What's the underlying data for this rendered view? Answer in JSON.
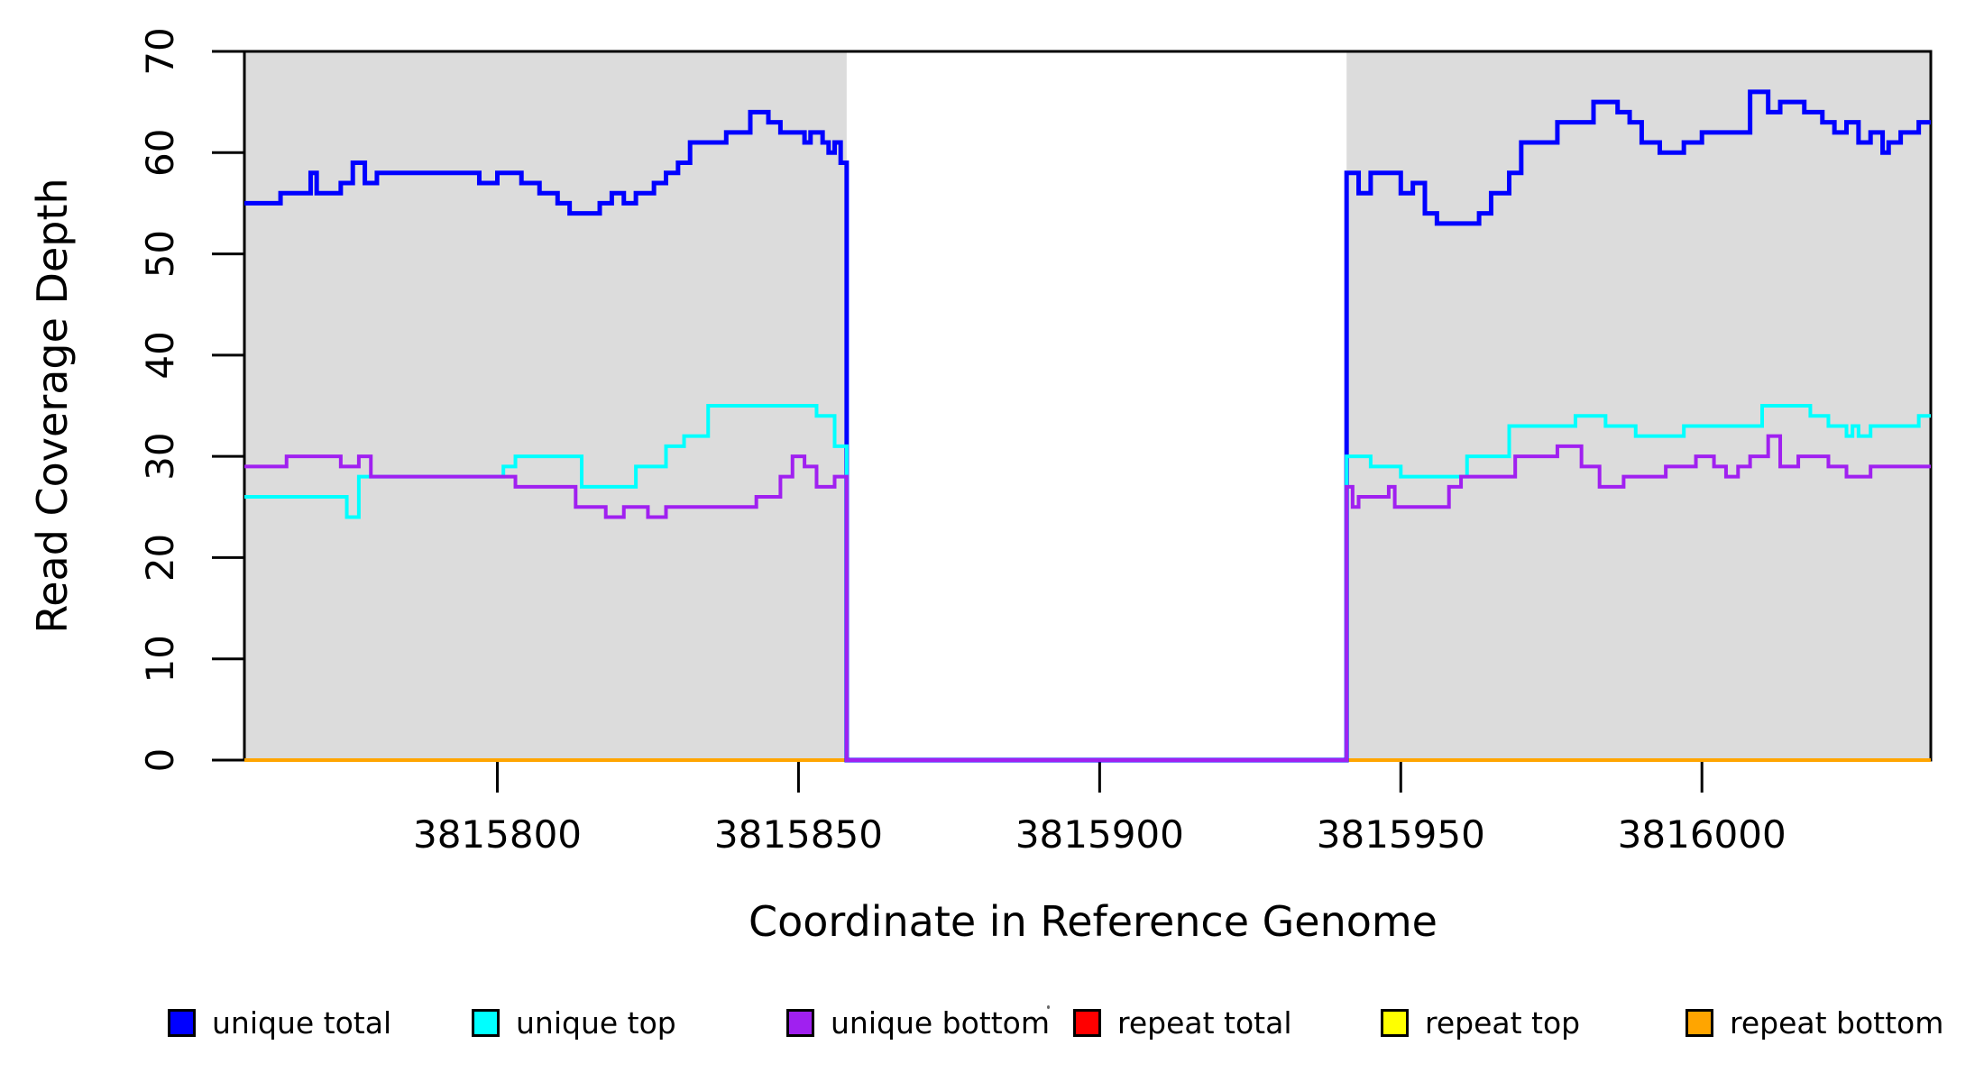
{
  "figure": {
    "background": "#ffffff",
    "panel_border_color": "#000000"
  },
  "chart_data": {
    "type": "line",
    "subtype": "step-post",
    "title": "",
    "xlabel": "Coordinate in Reference Genome",
    "ylabel": "Read Coverage Depth",
    "xlim": [
      3815758,
      3816038
    ],
    "ylim": [
      0,
      70
    ],
    "x_ticks": [
      3815800,
      3815850,
      3815900,
      3815950,
      3816000
    ],
    "y_ticks": [
      0,
      10,
      20,
      30,
      40,
      50,
      60,
      70
    ],
    "grid": false,
    "panel_background": "#DCDCDC",
    "covered_regions": [
      [
        3815758,
        3815858
      ],
      [
        3815941,
        3816038
      ]
    ],
    "coverage_gap": {
      "from": 3815858,
      "to": 3815941,
      "background": "#FFFFFF",
      "all_unique_series_value": 0
    },
    "legend_position": "bottom",
    "series": [
      {
        "name": "repeat total",
        "color": "#FF0000",
        "width": 4,
        "steps": [
          [
            3815758,
            0
          ]
        ]
      },
      {
        "name": "repeat top",
        "color": "#FFFF00",
        "width": 4,
        "steps": [
          [
            3815758,
            0
          ]
        ]
      },
      {
        "name": "repeat bottom",
        "color": "#FFA500",
        "width": 4,
        "steps": [
          [
            3815758,
            0
          ]
        ]
      },
      {
        "name": "unique total",
        "color": "#0000FF",
        "width": 5,
        "steps": [
          [
            3815758,
            55
          ],
          [
            3815764,
            56
          ],
          [
            3815769,
            58
          ],
          [
            3815770,
            56
          ],
          [
            3815774,
            57
          ],
          [
            3815776,
            59
          ],
          [
            3815778,
            57
          ],
          [
            3815780,
            58
          ],
          [
            3815797,
            57
          ],
          [
            3815800,
            58
          ],
          [
            3815804,
            57
          ],
          [
            3815807,
            56
          ],
          [
            3815810,
            55
          ],
          [
            3815812,
            54
          ],
          [
            3815817,
            55
          ],
          [
            3815819,
            56
          ],
          [
            3815821,
            55
          ],
          [
            3815823,
            56
          ],
          [
            3815826,
            57
          ],
          [
            3815828,
            58
          ],
          [
            3815830,
            59
          ],
          [
            3815832,
            61
          ],
          [
            3815838,
            62
          ],
          [
            3815842,
            64
          ],
          [
            3815845,
            63
          ],
          [
            3815847,
            62
          ],
          [
            3815851,
            61
          ],
          [
            3815852,
            62
          ],
          [
            3815854,
            61
          ],
          [
            3815855,
            60
          ],
          [
            3815856,
            61
          ],
          [
            3815857,
            59
          ],
          [
            3815858,
            0
          ],
          [
            3815941,
            58
          ],
          [
            3815943,
            56
          ],
          [
            3815945,
            58
          ],
          [
            3815950,
            56
          ],
          [
            3815952,
            57
          ],
          [
            3815954,
            54
          ],
          [
            3815956,
            53
          ],
          [
            3815963,
            54
          ],
          [
            3815965,
            56
          ],
          [
            3815968,
            58
          ],
          [
            3815970,
            61
          ],
          [
            3815976,
            63
          ],
          [
            3815982,
            65
          ],
          [
            3815986,
            64
          ],
          [
            3815988,
            63
          ],
          [
            3815990,
            61
          ],
          [
            3815993,
            60
          ],
          [
            3815997,
            61
          ],
          [
            3816000,
            62
          ],
          [
            3816008,
            66
          ],
          [
            3816011,
            64
          ],
          [
            3816013,
            65
          ],
          [
            3816017,
            64
          ],
          [
            3816020,
            63
          ],
          [
            3816022,
            62
          ],
          [
            3816024,
            63
          ],
          [
            3816026,
            61
          ],
          [
            3816028,
            62
          ],
          [
            3816030,
            60
          ],
          [
            3816031,
            61
          ],
          [
            3816033,
            62
          ],
          [
            3816036,
            63
          ]
        ]
      },
      {
        "name": "unique top",
        "color": "#00FFFF",
        "width": 4,
        "steps": [
          [
            3815758,
            26
          ],
          [
            3815775,
            24
          ],
          [
            3815777,
            28
          ],
          [
            3815801,
            29
          ],
          [
            3815803,
            30
          ],
          [
            3815814,
            27
          ],
          [
            3815823,
            29
          ],
          [
            3815828,
            31
          ],
          [
            3815831,
            32
          ],
          [
            3815835,
            35
          ],
          [
            3815853,
            34
          ],
          [
            3815856,
            31
          ],
          [
            3815858,
            0
          ],
          [
            3815941,
            30
          ],
          [
            3815945,
            29
          ],
          [
            3815950,
            28
          ],
          [
            3815961,
            30
          ],
          [
            3815968,
            33
          ],
          [
            3815979,
            34
          ],
          [
            3815984,
            33
          ],
          [
            3815989,
            32
          ],
          [
            3815997,
            33
          ],
          [
            3816010,
            35
          ],
          [
            3816018,
            34
          ],
          [
            3816021,
            33
          ],
          [
            3816024,
            32
          ],
          [
            3816025,
            33
          ],
          [
            3816026,
            32
          ],
          [
            3816028,
            33
          ],
          [
            3816036,
            34
          ]
        ]
      },
      {
        "name": "unique bottom",
        "color": "#A020F0",
        "width": 4,
        "steps": [
          [
            3815758,
            29
          ],
          [
            3815765,
            30
          ],
          [
            3815774,
            29
          ],
          [
            3815777,
            30
          ],
          [
            3815779,
            28
          ],
          [
            3815803,
            27
          ],
          [
            3815813,
            25
          ],
          [
            3815818,
            24
          ],
          [
            3815821,
            25
          ],
          [
            3815825,
            24
          ],
          [
            3815828,
            25
          ],
          [
            3815843,
            26
          ],
          [
            3815847,
            28
          ],
          [
            3815849,
            30
          ],
          [
            3815851,
            29
          ],
          [
            3815853,
            27
          ],
          [
            3815856,
            28
          ],
          [
            3815858,
            0
          ],
          [
            3815941,
            27
          ],
          [
            3815942,
            25
          ],
          [
            3815943,
            26
          ],
          [
            3815948,
            27
          ],
          [
            3815949,
            25
          ],
          [
            3815958,
            27
          ],
          [
            3815960,
            28
          ],
          [
            3815969,
            30
          ],
          [
            3815976,
            31
          ],
          [
            3815980,
            29
          ],
          [
            3815983,
            27
          ],
          [
            3815987,
            28
          ],
          [
            3815994,
            29
          ],
          [
            3815999,
            30
          ],
          [
            3816002,
            29
          ],
          [
            3816004,
            28
          ],
          [
            3816006,
            29
          ],
          [
            3816008,
            30
          ],
          [
            3816011,
            32
          ],
          [
            3816013,
            29
          ],
          [
            3816016,
            30
          ],
          [
            3816021,
            29
          ],
          [
            3816024,
            28
          ],
          [
            3816028,
            29
          ]
        ]
      }
    ]
  },
  "legend": [
    {
      "label": "unique total",
      "color": "#0000FF"
    },
    {
      "label": "unique top",
      "color": "#00FFFF"
    },
    {
      "label": "unique bottom",
      "color": "#A020F0"
    },
    {
      "label": "repeat total",
      "color": "#FF0000"
    },
    {
      "label": "repeat top",
      "color": "#FFFF00"
    },
    {
      "label": "repeat bottom",
      "color": "#FFA500"
    }
  ]
}
